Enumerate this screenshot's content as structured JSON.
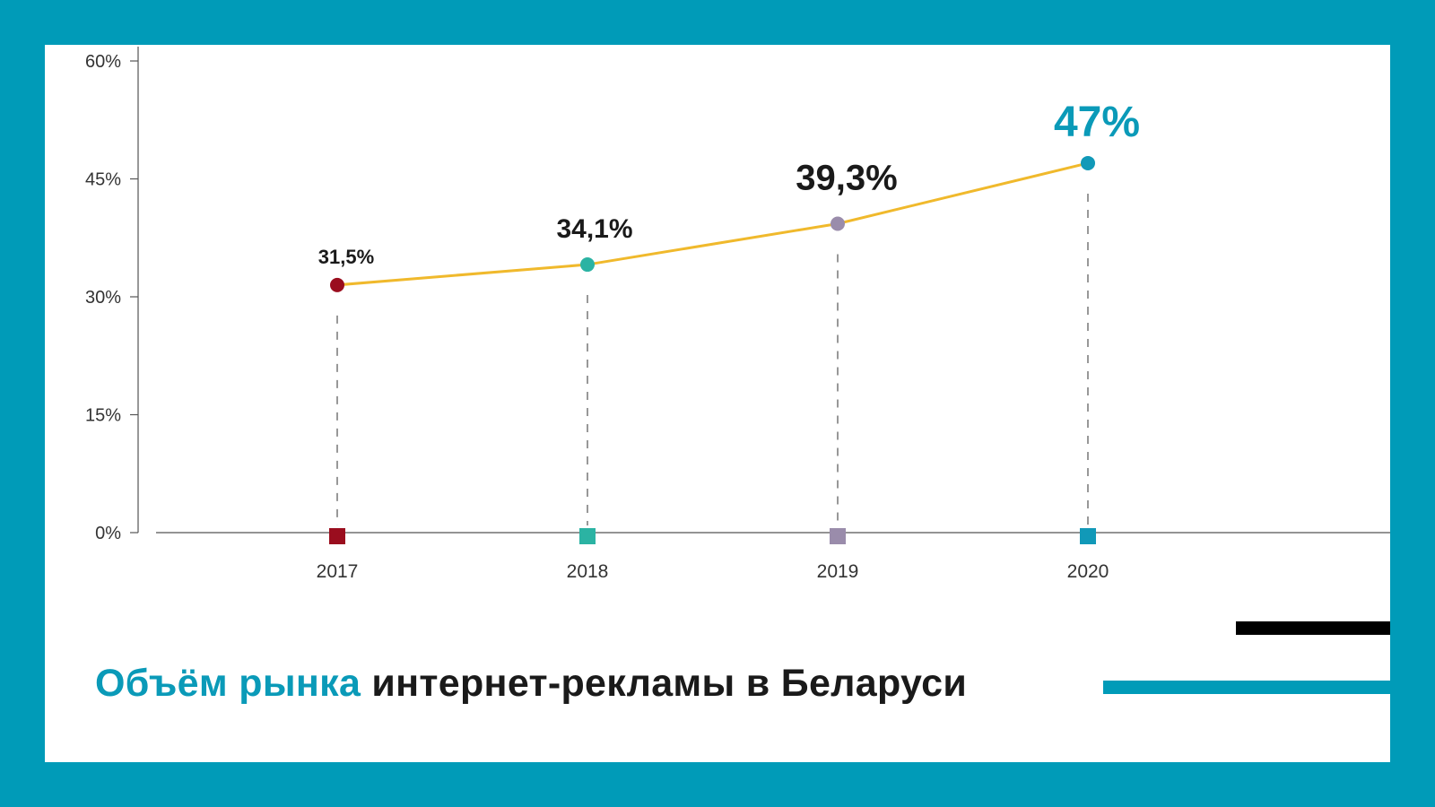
{
  "title": {
    "accent": "Объём рынка",
    "rest": " интернет-рекламы в Беларуси"
  },
  "colors": {
    "frame": "#009bb8",
    "line": "#f0b92c",
    "axis": "#555555"
  },
  "chart_data": {
    "type": "line",
    "title": "Объём рынка интернет-рекламы в Беларуси",
    "categories": [
      "2017",
      "2018",
      "2019",
      "2020"
    ],
    "values": [
      31.5,
      34.1,
      39.3,
      47
    ],
    "value_labels": [
      "31,5%",
      "34,1%",
      "39,3%",
      "47%"
    ],
    "point_colors": [
      "#9a0d1e",
      "#2bb3a3",
      "#9a8cab",
      "#1199b8"
    ],
    "y_ticks": [
      {
        "value": 0,
        "label": "0%"
      },
      {
        "value": 15,
        "label": "15%"
      },
      {
        "value": 30,
        "label": "30%"
      },
      {
        "value": 45,
        "label": "45%"
      },
      {
        "value": 60,
        "label": "60%"
      }
    ],
    "ylim": [
      0,
      60
    ],
    "xlabel": "",
    "ylabel": "",
    "grid": false,
    "legend": "none"
  }
}
